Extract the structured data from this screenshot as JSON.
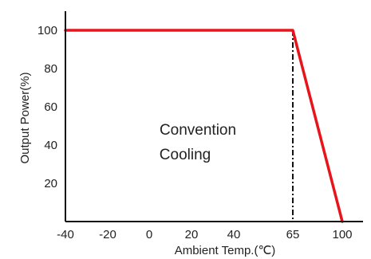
{
  "chart_data": {
    "type": "line",
    "xlabel": "Ambient Temp.(℃)",
    "ylabel": "Output Power(%)",
    "x_ticks": [
      {
        "value": -40,
        "label": "-40"
      },
      {
        "value": -20,
        "label": "-20"
      },
      {
        "value": 0,
        "label": "0"
      },
      {
        "value": 20,
        "label": "20"
      },
      {
        "value": 40,
        "label": "40"
      },
      {
        "value": 65,
        "label": "65"
      },
      {
        "value": 100,
        "label": "100"
      }
    ],
    "y_ticks": [
      {
        "value": 20,
        "label": "20"
      },
      {
        "value": 40,
        "label": "40"
      },
      {
        "value": 60,
        "label": "60"
      },
      {
        "value": 80,
        "label": "80"
      },
      {
        "value": 100,
        "label": "100"
      }
    ],
    "ylim": [
      0,
      110
    ],
    "grid": false,
    "series": [
      {
        "color": "#e8141b",
        "points": [
          {
            "x": -40,
            "y": 100
          },
          {
            "x": 65,
            "y": 100
          },
          {
            "x": 100,
            "y": 0
          }
        ]
      }
    ],
    "reference_line": {
      "x": 65,
      "style": "dash-dot",
      "color": "#111111"
    },
    "annotation": {
      "lines": [
        "Convention",
        "Cooling"
      ]
    }
  }
}
